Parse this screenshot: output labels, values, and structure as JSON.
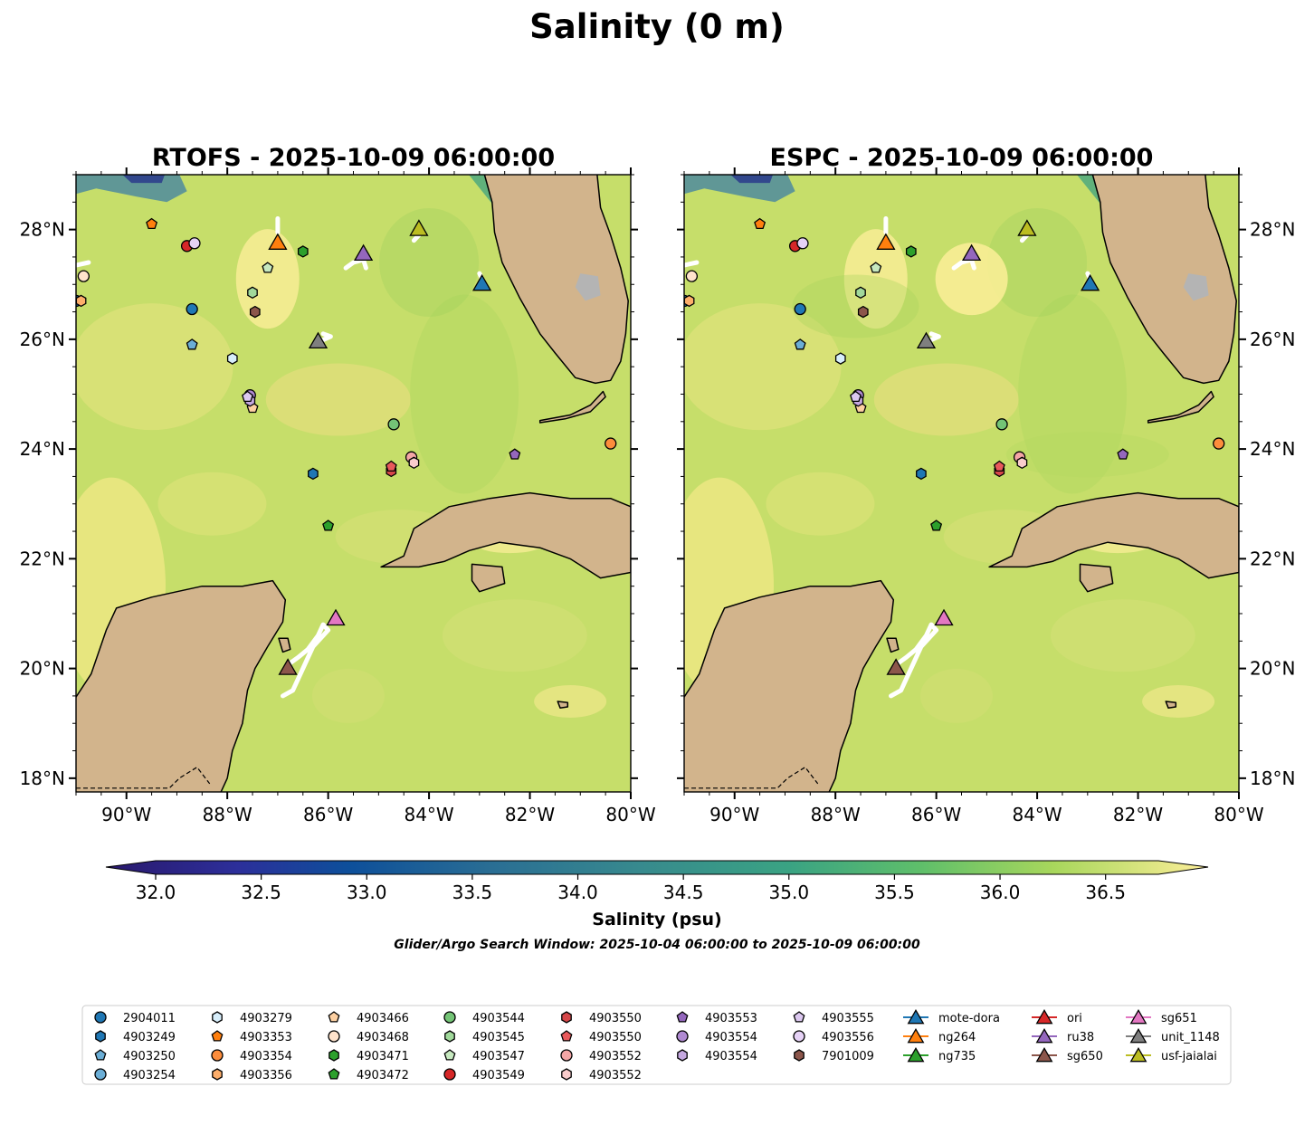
{
  "figure": {
    "title": "Salinity (0 m)",
    "search_window": "Glider/Argo Search Window: 2025-10-04 06:00:00 to 2025-10-09 06:00:00"
  },
  "panels": [
    {
      "title": "RTOFS - 2025-10-09 06:00:00",
      "model": "RTOFS"
    },
    {
      "title": "ESPC - 2025-10-09 06:00:00",
      "model": "ESPC"
    }
  ],
  "map": {
    "lon_range": [
      -91.0,
      -80.0
    ],
    "lat_range": [
      17.75,
      29.0
    ],
    "lon_ticks": [
      "90°W",
      "88°W",
      "86°W",
      "84°W",
      "82°W",
      "80°W"
    ],
    "lat_ticks": [
      "28°N",
      "26°N",
      "24°N",
      "22°N",
      "20°N",
      "18°N"
    ],
    "land_color": "#d2b48c",
    "ocean_base": "#c6de6a",
    "ocean_fresh": "#2a3a8c"
  },
  "colorbar": {
    "label": "Salinity (psu)",
    "ticks": [
      "32.0",
      "32.5",
      "33.0",
      "33.5",
      "34.0",
      "34.5",
      "35.0",
      "35.5",
      "36.0",
      "36.5"
    ],
    "vmin": 32.0,
    "vmax": 36.75,
    "colormap": "haline"
  },
  "platforms": [
    {
      "id": "2904011",
      "lon": -91.0,
      "lat": 26.7,
      "marker": "circle",
      "color": "#1f77b4"
    },
    {
      "id": "2904011",
      "lon": -88.7,
      "lat": 26.55,
      "marker": "circle",
      "color": "#1f77b4"
    },
    {
      "id": "4903249",
      "lon": -86.3,
      "lat": 23.55,
      "marker": "hexagon",
      "color": "#1f77b4"
    },
    {
      "id": "4903250",
      "lon": -88.7,
      "lat": 25.9,
      "marker": "pentagon",
      "color": "#6baed6"
    },
    {
      "id": "4903279",
      "lon": -87.9,
      "lat": 25.65,
      "marker": "hexagon",
      "color": "#d7eefb"
    },
    {
      "id": "4903353",
      "lon": -89.5,
      "lat": 28.1,
      "marker": "pentagon",
      "color": "#ff7f0e"
    },
    {
      "id": "4903354",
      "lon": -80.4,
      "lat": 24.1,
      "marker": "circle",
      "color": "#fd8d3c"
    },
    {
      "id": "4903356",
      "lon": -90.9,
      "lat": 26.7,
      "marker": "hexagon",
      "color": "#fdae6b"
    },
    {
      "id": "4903466",
      "lon": -87.5,
      "lat": 24.75,
      "marker": "pentagon",
      "color": "#fdd0a2"
    },
    {
      "id": "4903468",
      "lon": -90.85,
      "lat": 27.15,
      "marker": "circle",
      "color": "#ffe3cc"
    },
    {
      "id": "4903471",
      "lon": -86.5,
      "lat": 27.6,
      "marker": "hexagon",
      "color": "#2ca02c"
    },
    {
      "id": "4903472",
      "lon": -86.0,
      "lat": 22.6,
      "marker": "pentagon",
      "color": "#2ca02c"
    },
    {
      "id": "4903544",
      "lon": -84.7,
      "lat": 24.45,
      "marker": "circle",
      "color": "#74c476"
    },
    {
      "id": "4903545",
      "lon": -87.5,
      "lat": 26.85,
      "marker": "hexagon",
      "color": "#a1d99b"
    },
    {
      "id": "4903547",
      "lon": -87.2,
      "lat": 27.3,
      "marker": "pentagon",
      "color": "#c7e9c0"
    },
    {
      "id": "4903549",
      "lon": -88.8,
      "lat": 27.7,
      "marker": "circle",
      "color": "#d62728"
    },
    {
      "id": "4903550",
      "lon": -84.75,
      "lat": 23.6,
      "marker": "hexagon",
      "color": "#d6474a"
    },
    {
      "id": "4903550",
      "lon": -84.75,
      "lat": 23.68,
      "marker": "pentagon",
      "color": "#e8595b"
    },
    {
      "id": "4903552",
      "lon": -84.35,
      "lat": 23.85,
      "marker": "circle",
      "color": "#f4a6a6"
    },
    {
      "id": "4903552",
      "lon": -84.3,
      "lat": 23.75,
      "marker": "hexagon",
      "color": "#f9cccc"
    },
    {
      "id": "4903553",
      "lon": -82.3,
      "lat": 23.9,
      "marker": "pentagon",
      "color": "#9467bd"
    },
    {
      "id": "4903554",
      "lon": -87.55,
      "lat": 24.98,
      "marker": "circle",
      "color": "#b08ad2"
    },
    {
      "id": "4903554",
      "lon": -87.55,
      "lat": 24.88,
      "marker": "hexagon",
      "color": "#c5a8e0"
    },
    {
      "id": "4903555",
      "lon": -87.6,
      "lat": 24.95,
      "marker": "pentagon",
      "color": "#dcc8f0"
    },
    {
      "id": "4903556",
      "lon": -88.65,
      "lat": 27.75,
      "marker": "circle",
      "color": "#e6d2f6"
    },
    {
      "id": "7901009",
      "lon": -87.45,
      "lat": 26.5,
      "marker": "hexagon",
      "color": "#8c564b"
    },
    {
      "id": "mote-dora",
      "lon": -82.95,
      "lat": 27.0,
      "marker": "triangle",
      "color": "#1f77b4"
    },
    {
      "id": "ng264",
      "lon": -87.0,
      "lat": 27.75,
      "marker": "triangle",
      "color": "#ff7f0e"
    },
    {
      "id": "ru38",
      "lon": -85.3,
      "lat": 27.55,
      "marker": "triangle",
      "color": "#9467bd"
    },
    {
      "id": "sg650",
      "lon": -86.8,
      "lat": 20.0,
      "marker": "triangle",
      "color": "#8c564b"
    },
    {
      "id": "sg651",
      "lon": -85.85,
      "lat": 20.9,
      "marker": "triangle",
      "color": "#e377c2"
    },
    {
      "id": "unit_1148",
      "lon": -86.2,
      "lat": 25.95,
      "marker": "triangle",
      "color": "#7f7f7f"
    },
    {
      "id": "usf-jaialai",
      "lon": -84.2,
      "lat": 28.0,
      "marker": "triangle",
      "color": "#bcbd22"
    }
  ],
  "tracks": [
    {
      "points": [
        [
          -86.8,
          20.0
        ],
        [
          -86.75,
          20.1
        ],
        [
          -86.6,
          20.2
        ],
        [
          -86.4,
          20.35
        ],
        [
          -86.2,
          20.6
        ],
        [
          -86.1,
          20.8
        ],
        [
          -86.0,
          20.7
        ],
        [
          -86.3,
          20.4
        ],
        [
          -86.7,
          19.6
        ],
        [
          -86.9,
          19.5
        ]
      ]
    },
    {
      "points": [
        [
          -86.1,
          26.1
        ],
        [
          -85.95,
          26.05
        ],
        [
          -86.2,
          25.95
        ]
      ]
    },
    {
      "points": [
        [
          -85.65,
          27.3
        ],
        [
          -85.5,
          27.4
        ],
        [
          -85.3,
          27.45
        ],
        [
          -85.25,
          27.3
        ]
      ]
    },
    {
      "points": [
        [
          -87.0,
          28.2
        ],
        [
          -87.0,
          28.1
        ],
        [
          -87.0,
          27.95
        ]
      ]
    },
    {
      "points": [
        [
          -83.0,
          27.2
        ],
        [
          -82.95,
          27.1
        ]
      ]
    },
    {
      "points": [
        [
          -84.3,
          27.8
        ],
        [
          -84.2,
          27.9
        ]
      ]
    },
    {
      "points": [
        [
          -91.0,
          27.35
        ],
        [
          -90.75,
          27.4
        ]
      ]
    }
  ],
  "legend": {
    "columns": [
      [
        {
          "label": "2904011",
          "marker": "circle",
          "color": "#1f77b4"
        },
        {
          "label": "4903249",
          "marker": "hexagon",
          "color": "#1f77b4"
        },
        {
          "label": "4903250",
          "marker": "pentagon",
          "color": "#6baed6"
        },
        {
          "label": "4903254",
          "marker": "circle",
          "color": "#6baed6"
        }
      ],
      [
        {
          "label": "4903279",
          "marker": "hexagon",
          "color": "#d7eefb"
        },
        {
          "label": "4903353",
          "marker": "pentagon",
          "color": "#ff7f0e"
        },
        {
          "label": "4903354",
          "marker": "circle",
          "color": "#fd8d3c"
        },
        {
          "label": "4903356",
          "marker": "hexagon",
          "color": "#fdae6b"
        }
      ],
      [
        {
          "label": "4903466",
          "marker": "pentagon",
          "color": "#fdd0a2"
        },
        {
          "label": "4903468",
          "marker": "circle",
          "color": "#ffe3cc"
        },
        {
          "label": "4903471",
          "marker": "hexagon",
          "color": "#2ca02c"
        },
        {
          "label": "4903472",
          "marker": "pentagon",
          "color": "#2ca02c"
        }
      ],
      [
        {
          "label": "4903544",
          "marker": "circle",
          "color": "#74c476"
        },
        {
          "label": "4903545",
          "marker": "hexagon",
          "color": "#a1d99b"
        },
        {
          "label": "4903547",
          "marker": "pentagon",
          "color": "#c7e9c0"
        },
        {
          "label": "4903549",
          "marker": "circle",
          "color": "#d62728"
        }
      ],
      [
        {
          "label": "4903550",
          "marker": "hexagon",
          "color": "#d6474a"
        },
        {
          "label": "4903550",
          "marker": "pentagon",
          "color": "#e8595b"
        },
        {
          "label": "4903552",
          "marker": "circle",
          "color": "#f4a6a6"
        },
        {
          "label": "4903552",
          "marker": "hexagon",
          "color": "#f9cccc"
        }
      ],
      [
        {
          "label": "4903553",
          "marker": "pentagon",
          "color": "#9467bd"
        },
        {
          "label": "4903554",
          "marker": "circle",
          "color": "#b08ad2"
        },
        {
          "label": "4903554",
          "marker": "hexagon",
          "color": "#c5a8e0"
        }
      ],
      [
        {
          "label": "4903555",
          "marker": "pentagon",
          "color": "#dcc8f0"
        },
        {
          "label": "4903556",
          "marker": "circle",
          "color": "#e6d2f6"
        },
        {
          "label": "7901009",
          "marker": "hexagon",
          "color": "#8c564b"
        }
      ],
      [
        {
          "label": "mote-dora",
          "marker": "triangle-line",
          "color": "#1f77b4"
        },
        {
          "label": "ng264",
          "marker": "triangle-line",
          "color": "#ff7f0e"
        },
        {
          "label": "ng735",
          "marker": "triangle-line",
          "color": "#2ca02c"
        }
      ],
      [
        {
          "label": "ori",
          "marker": "triangle-line",
          "color": "#d62728"
        },
        {
          "label": "ru38",
          "marker": "triangle-line",
          "color": "#9467bd"
        },
        {
          "label": "sg650",
          "marker": "triangle-line",
          "color": "#8c564b"
        }
      ],
      [
        {
          "label": "sg651",
          "marker": "triangle-line",
          "color": "#e377c2"
        },
        {
          "label": "unit_1148",
          "marker": "triangle-line",
          "color": "#7f7f7f"
        },
        {
          "label": "usf-jaialai",
          "marker": "triangle-line",
          "color": "#bcbd22"
        }
      ]
    ]
  }
}
